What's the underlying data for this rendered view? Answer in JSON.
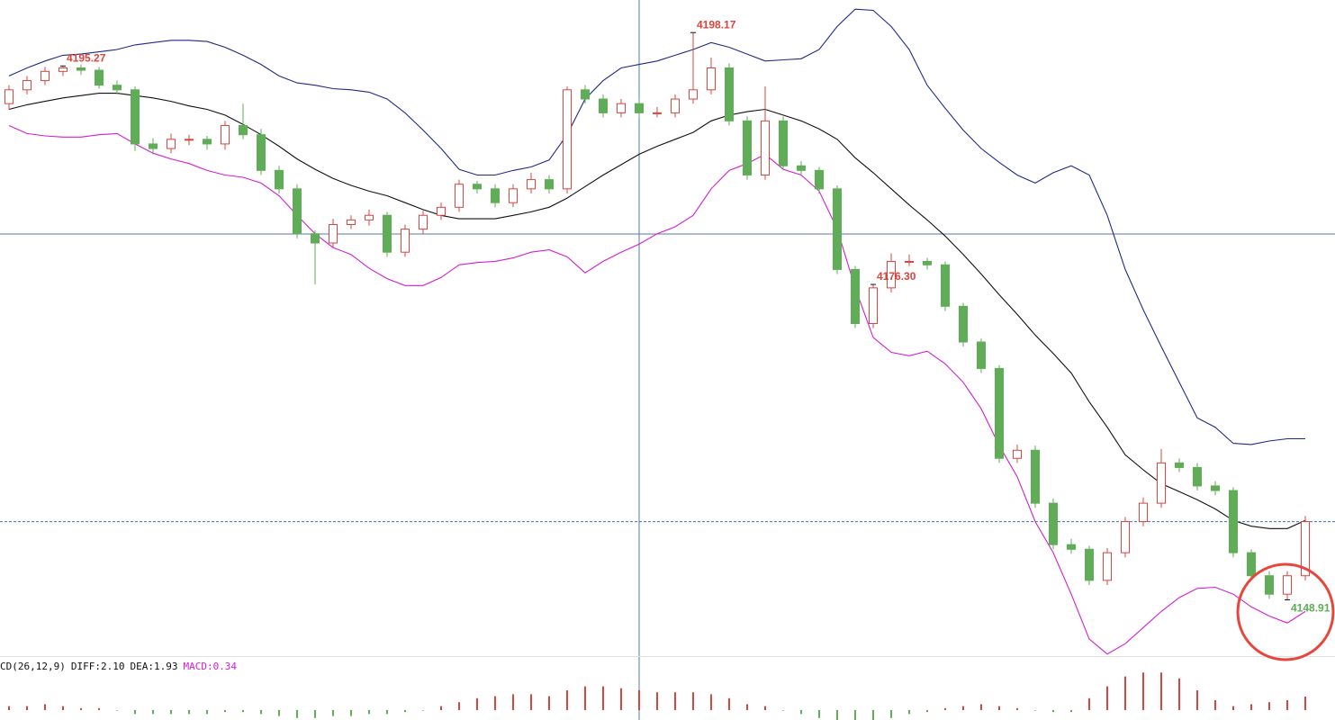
{
  "chart_data": {
    "type": "candlestick",
    "ylim": [
      4144.1,
      4201.0
    ],
    "up_color": "#d9443f",
    "down_color": "#5fad56",
    "open": [
      4192.0,
      4193.2,
      4194.0,
      4194.8,
      4195.1,
      4194.9,
      4193.6,
      4193.2,
      4188.5,
      4188.1,
      4188.9,
      4188.9,
      4188.5,
      4190.1,
      4189.3,
      4186.2,
      4184.6,
      4180.7,
      4179.9,
      4181.5,
      4181.9,
      4182.3,
      4179.1,
      4181.1,
      4182.3,
      4183.0,
      4185.0,
      4184.6,
      4183.4,
      4184.6,
      4185.4,
      4184.6,
      4193.2,
      4192.4,
      4191.2,
      4192.0,
      4191.2,
      4191.2,
      4192.4,
      4193.2,
      4195.1,
      4190.5,
      4185.8,
      4190.5,
      4186.6,
      4186.2,
      4184.6,
      4177.6,
      4172.9,
      4176.0,
      4178.3,
      4178.3,
      4178.0,
      4174.4,
      4171.3,
      4169.0,
      4161.2,
      4161.9,
      4157.3,
      4153.7,
      4153.3,
      4150.6,
      4153.0,
      4155.7,
      4157.3,
      4160.8,
      4160.4,
      4158.8,
      4158.4,
      4153.0,
      4151.0,
      4149.4,
      4151.0
    ],
    "high": [
      4193.6,
      4194.4,
      4195.2,
      4195.27,
      4195.4,
      4195.2,
      4194.0,
      4193.5,
      4189.0,
      4189.4,
      4189.3,
      4189.2,
      4190.5,
      4192.0,
      4189.8,
      4186.6,
      4185.0,
      4181.0,
      4182.0,
      4182.3,
      4182.8,
      4182.6,
      4181.5,
      4182.7,
      4183.4,
      4185.4,
      4185.3,
      4185.0,
      4185.0,
      4186.0,
      4185.8,
      4193.5,
      4193.6,
      4192.8,
      4192.4,
      4192.4,
      4191.7,
      4192.8,
      4198.17,
      4196.0,
      4195.5,
      4190.9,
      4193.5,
      4190.9,
      4187.0,
      4186.5,
      4184.9,
      4177.9,
      4176.3,
      4179.0,
      4178.9,
      4178.6,
      4178.3,
      4174.7,
      4171.6,
      4169.3,
      4162.4,
      4162.3,
      4157.7,
      4154.2,
      4153.6,
      4153.4,
      4156.1,
      4157.8,
      4162.0,
      4161.2,
      4160.8,
      4159.2,
      4158.7,
      4153.3,
      4151.4,
      4151.4,
      4156.2
    ],
    "low": [
      4191.5,
      4192.8,
      4193.6,
      4194.4,
      4194.5,
      4193.3,
      4192.8,
      4187.9,
      4187.6,
      4187.7,
      4188.4,
      4188.0,
      4188.0,
      4188.9,
      4185.8,
      4184.2,
      4180.3,
      4176.3,
      4179.5,
      4181.1,
      4181.4,
      4178.7,
      4178.7,
      4180.7,
      4181.9,
      4182.6,
      4184.2,
      4183.0,
      4183.0,
      4184.2,
      4184.2,
      4184.2,
      4192.0,
      4190.8,
      4190.8,
      4190.8,
      4190.8,
      4190.8,
      4192.0,
      4192.8,
      4190.1,
      4185.4,
      4185.4,
      4186.2,
      4185.8,
      4184.2,
      4177.2,
      4172.5,
      4172.5,
      4175.6,
      4177.9,
      4177.6,
      4174.0,
      4170.9,
      4168.6,
      4160.8,
      4160.8,
      4156.9,
      4153.3,
      4152.9,
      4150.2,
      4150.2,
      4152.6,
      4155.3,
      4156.9,
      4160.0,
      4158.4,
      4158.0,
      4152.6,
      4150.6,
      4149.0,
      4148.91,
      4150.6
    ],
    "close": [
      4193.2,
      4194.0,
      4194.8,
      4195.1,
      4194.9,
      4193.6,
      4193.2,
      4188.5,
      4188.1,
      4188.9,
      4188.9,
      4188.5,
      4190.1,
      4189.3,
      4186.2,
      4184.6,
      4180.7,
      4179.9,
      4181.5,
      4181.9,
      4182.3,
      4179.1,
      4181.1,
      4182.3,
      4183.0,
      4185.0,
      4184.6,
      4183.4,
      4184.6,
      4185.4,
      4184.6,
      4193.2,
      4192.4,
      4191.2,
      4192.0,
      4191.2,
      4191.2,
      4192.4,
      4193.2,
      4195.1,
      4190.5,
      4185.8,
      4190.5,
      4186.6,
      4186.2,
      4184.6,
      4177.6,
      4172.9,
      4176.0,
      4178.3,
      4178.3,
      4178.0,
      4174.4,
      4171.3,
      4169.0,
      4161.2,
      4161.9,
      4157.3,
      4153.7,
      4153.3,
      4150.6,
      4153.0,
      4155.7,
      4157.3,
      4160.8,
      4160.4,
      4158.8,
      4158.4,
      4153.0,
      4151.0,
      4149.4,
      4151.0,
      4155.7
    ],
    "upper": [
      4194.4,
      4195.1,
      4195.7,
      4196.2,
      4196.3,
      4196.5,
      4196.7,
      4197.1,
      4197.3,
      4197.5,
      4197.5,
      4197.4,
      4196.9,
      4196.2,
      4195.4,
      4194.4,
      4193.8,
      4193.6,
      4193.3,
      4193.2,
      4193.0,
      4192.4,
      4191.2,
      4189.7,
      4188.1,
      4186.3,
      4185.8,
      4185.8,
      4186.2,
      4186.5,
      4187.1,
      4189.3,
      4192.4,
      4194.0,
      4195.1,
      4195.4,
      4195.7,
      4196.2,
      4196.7,
      4197.3,
      4196.9,
      4196.3,
      4195.7,
      4195.8,
      4195.9,
      4196.7,
      4198.7,
      4200.2,
      4200.1,
      4198.7,
      4196.7,
      4193.6,
      4191.6,
      4189.7,
      4188.1,
      4186.9,
      4185.8,
      4185.1,
      4186.0,
      4186.6,
      4185.8,
      4182.3,
      4177.6,
      4174.1,
      4170.9,
      4167.8,
      4164.7,
      4163.9,
      4162.5,
      4162.4,
      4162.7,
      4162.9,
      4162.9
    ],
    "middle": [
      4191.5,
      4191.9,
      4192.2,
      4192.5,
      4192.7,
      4192.9,
      4192.9,
      4192.7,
      4192.5,
      4192.2,
      4191.8,
      4191.5,
      4191.0,
      4190.2,
      4189.3,
      4188.3,
      4187.2,
      4186.3,
      4185.5,
      4184.9,
      4184.4,
      4184.0,
      4183.4,
      4182.8,
      4182.3,
      4182.0,
      4182.0,
      4182.0,
      4182.3,
      4182.6,
      4183.0,
      4183.8,
      4184.8,
      4185.8,
      4186.7,
      4187.6,
      4188.3,
      4188.9,
      4189.5,
      4190.5,
      4191.0,
      4191.3,
      4191.5,
      4191.0,
      4190.5,
      4189.8,
      4188.9,
      4187.3,
      4186.0,
      4184.6,
      4183.2,
      4181.9,
      4180.5,
      4178.9,
      4177.2,
      4175.4,
      4173.7,
      4171.9,
      4170.3,
      4168.6,
      4166.1,
      4163.9,
      4161.5,
      4160.2,
      4159.0,
      4158.3,
      4157.6,
      4156.8,
      4155.8,
      4155.3,
      4155.1,
      4155.1,
      4155.8
    ],
    "lower": [
      4190.1,
      4189.4,
      4189.2,
      4189.1,
      4189.1,
      4189.3,
      4189.4,
      4188.5,
      4187.7,
      4187.2,
      4186.8,
      4186.2,
      4185.8,
      4185.6,
      4185.1,
      4184.0,
      4182.3,
      4180.7,
      4179.5,
      4178.9,
      4177.7,
      4176.8,
      4176.2,
      4176.2,
      4176.9,
      4178.0,
      4178.2,
      4178.3,
      4178.6,
      4179.1,
      4179.3,
      4178.7,
      4177.3,
      4178.3,
      4179.1,
      4179.8,
      4180.7,
      4181.3,
      4182.3,
      4184.6,
      4186.2,
      4186.8,
      4187.6,
      4186.3,
      4185.8,
      4184.4,
      4181.1,
      4176.0,
      4171.7,
      4170.4,
      4170.1,
      4170.5,
      4169.4,
      4167.8,
      4165.5,
      4162.3,
      4159.6,
      4155.7,
      4153.0,
      4149.4,
      4145.5,
      4144.2,
      4145.1,
      4146.5,
      4147.9,
      4149.1,
      4149.9,
      4150.0,
      4149.4,
      4148.3,
      4147.5,
      4146.9,
      4147.9
    ],
    "band_colors": {
      "upper": "#1f2a86",
      "middle": "#111111",
      "lower": "#d21fd2"
    },
    "annotations": [
      {
        "value": 4195.27,
        "label": "4195.27"
      },
      {
        "value": 4198.17,
        "label": "4198.17"
      },
      {
        "value": 4176.3,
        "label": "4176.30"
      },
      {
        "value": 4148.91,
        "label": "4148.91"
      }
    ],
    "macd": {
      "title": "CD(26,12,9)",
      "diff_label": "DIFF:2.10",
      "dea_label": "DEA:1.93",
      "macd_label": "MACD:0.34",
      "ylim": [
        -0.25,
        1.0
      ],
      "histogram": [
        0.1,
        0.1,
        0.15,
        0.1,
        0.05,
        0.05,
        0,
        -0.1,
        -0.1,
        -0.1,
        -0.1,
        -0.1,
        -0.05,
        -0.05,
        -0.1,
        -0.15,
        -0.2,
        -0.2,
        -0.15,
        -0.15,
        -0.1,
        -0.1,
        -0.05,
        0,
        0.1,
        0.2,
        0.3,
        0.35,
        0.4,
        0.4,
        0.35,
        0.5,
        0.6,
        0.6,
        0.55,
        0.5,
        0.45,
        0.45,
        0.45,
        0.4,
        0.3,
        0.15,
        0.1,
        0,
        -0.1,
        -0.2,
        -0.3,
        -0.35,
        -0.3,
        -0.2,
        -0.1,
        -0.05,
        0.05,
        0.1,
        0.15,
        0.1,
        0.05,
        0,
        -0.05,
        -0.05,
        0.3,
        0.6,
        0.85,
        0.95,
        0.95,
        0.8,
        0.5,
        0.25,
        0.1,
        0.15,
        0.2,
        0.25,
        0.34
      ]
    }
  }
}
